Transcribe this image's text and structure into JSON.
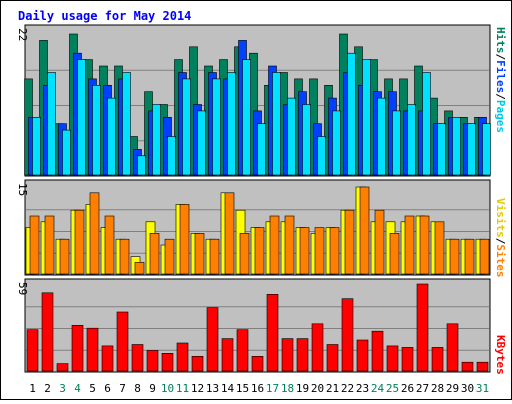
{
  "chart_data": {
    "type": "bar",
    "title": "Daily usage for May 2014",
    "categories": [
      "1",
      "2",
      "3",
      "4",
      "5",
      "6",
      "7",
      "8",
      "9",
      "10",
      "11",
      "12",
      "13",
      "14",
      "15",
      "16",
      "17",
      "18",
      "19",
      "20",
      "21",
      "22",
      "23",
      "24",
      "25",
      "26",
      "27",
      "28",
      "29",
      "30",
      "31"
    ],
    "weekend_days": [
      3,
      4,
      10,
      11,
      17,
      18,
      24,
      25,
      31
    ],
    "panels": [
      {
        "id": "hits",
        "ymax_label": "22",
        "ymax": 22,
        "series": [
          {
            "name": "Hits",
            "color": "#00805c",
            "values": [
              15,
              21,
              8,
              22,
              18,
              17,
              17,
              6,
              13,
              11,
              18,
              20,
              17,
              18,
              20,
              19,
              14,
              16,
              15,
              15,
              14,
              22,
              20,
              18,
              15,
              15,
              17,
              12,
              10,
              9,
              9
            ]
          },
          {
            "name": "Files",
            "color": "#0040ff",
            "values": [
              9,
              14,
              8,
              19,
              15,
              14,
              15,
              4,
              10,
              9,
              16,
              11,
              16,
              15,
              21,
              10,
              17,
              11,
              13,
              8,
              12,
              16,
              14,
              13,
              13,
              10,
              10,
              8,
              9,
              8,
              9
            ]
          },
          {
            "name": "Pages",
            "color": "#00e0ff",
            "values": [
              9,
              16,
              7,
              18,
              14,
              12,
              16,
              3,
              11,
              6,
              15,
              10,
              15,
              16,
              18,
              8,
              16,
              12,
              11,
              6,
              10,
              19,
              18,
              12,
              10,
              11,
              16,
              8,
              9,
              8,
              8
            ]
          }
        ]
      },
      {
        "id": "visits",
        "ymax_label": "15",
        "ymax": 15,
        "series": [
          {
            "name": "Visits",
            "color": "#ffff00",
            "values": [
              8,
              9,
              6,
              11,
              12,
              8,
              6,
              3,
              9,
              5,
              12,
              7,
              6,
              14,
              11,
              8,
              9,
              9,
              8,
              7,
              8,
              11,
              15,
              9,
              9,
              9,
              10,
              9,
              6,
              6,
              6
            ]
          },
          {
            "name": "Sites",
            "color": "#ff8000",
            "values": [
              10,
              10,
              6,
              11,
              14,
              10,
              6,
              2,
              7,
              6,
              12,
              7,
              6,
              14,
              7,
              8,
              10,
              10,
              8,
              8,
              8,
              11,
              15,
              11,
              7,
              10,
              10,
              9,
              6,
              6,
              6
            ]
          }
        ]
      },
      {
        "id": "kbytes",
        "ymax_label": "59",
        "ymax": 59,
        "series": [
          {
            "name": "KBytes",
            "color": "#ff0000",
            "values": [
              28,
              53,
              5,
              31,
              29,
              17,
              40,
              18,
              14,
              12,
              19,
              10,
              43,
              22,
              28,
              10,
              52,
              22,
              22,
              32,
              18,
              49,
              21,
              27,
              17,
              16,
              59,
              16,
              32,
              6,
              6
            ]
          }
        ]
      }
    ],
    "right_labels": {
      "top": [
        {
          "text": "Pages",
          "color": "#00c8e8"
        },
        {
          "text": "Files",
          "color": "#0040ff"
        },
        {
          "text": "Hits",
          "color": "#00805c"
        }
      ],
      "middle": [
        {
          "text": "Sites",
          "color": "#ff8000"
        },
        {
          "text": "Visits",
          "color": "#e8c800"
        }
      ],
      "bottom": [
        {
          "text": "KBytes",
          "color": "#ff0000"
        }
      ]
    },
    "separator": "/",
    "colors": {
      "panel_bg": "#c0c0c0",
      "title": "#0000ff",
      "weekday": "#000000",
      "weekend": "#00805c"
    },
    "grid": true,
    "legend": "right (rotated)"
  }
}
